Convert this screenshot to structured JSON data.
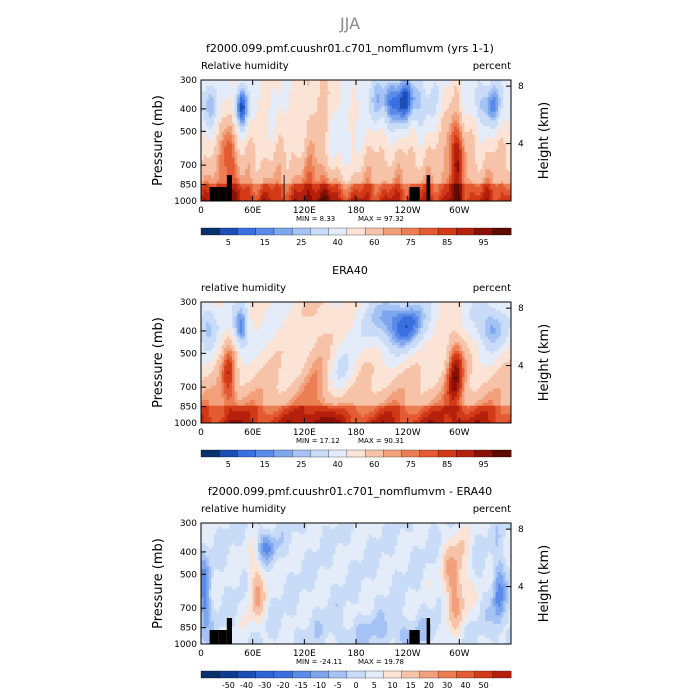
{
  "page_title": "JJA",
  "chart_data": [
    {
      "type": "heatmap",
      "title": "f2000.099.pmf.cuushr01.c701_nomflumvm (yrs 1-1)",
      "left_label": "Relative humidity",
      "right_label": "percent",
      "ylabel": "Pressure (mb)",
      "ylabel_right": "Height (km)",
      "x_ticks": [
        "0",
        "60E",
        "120E",
        "180",
        "120W",
        "60W"
      ],
      "x_tick_lon": [
        0,
        60,
        120,
        180,
        240,
        300
      ],
      "xlim": [
        0,
        360
      ],
      "y_ticks": [
        "300",
        "400",
        "500",
        "700",
        "850",
        "1000"
      ],
      "y_tick_p": [
        300,
        400,
        500,
        700,
        850,
        1000
      ],
      "ylim": [
        300,
        1000
      ],
      "y_scale": "log",
      "y2_ticks": [
        "8",
        "4"
      ],
      "y2_tick_km": [
        8,
        4
      ],
      "min_label": "MIN =    8.33",
      "max_label": "MAX =   97.32",
      "colorbar": {
        "labels": [
          "5",
          "15",
          "25",
          "40",
          "60",
          "75",
          "85",
          "95"
        ],
        "colors": [
          "#08306b",
          "#1c4fb4",
          "#3b6fe0",
          "#5a8ae8",
          "#7ea6ef",
          "#a4c2f4",
          "#c8dbf7",
          "#e3ecf8",
          "#fbe3d6",
          "#f6c3a8",
          "#f2a07c",
          "#ec7e54",
          "#e45a32",
          "#d23a17",
          "#b5200c",
          "#8a1005",
          "#5c0a02"
        ]
      },
      "anomaly": false,
      "terrain_boxes": [
        [
          10,
          20
        ],
        [
          20,
          30
        ],
        [
          30,
          36
        ],
        [
          96,
          97
        ],
        [
          242,
          254
        ],
        [
          262,
          266
        ]
      ]
    },
    {
      "type": "heatmap",
      "title": "ERA40",
      "left_label": "relative humidity",
      "right_label": "percent",
      "ylabel": "Pressure (mb)",
      "ylabel_right": "Height (km)",
      "x_ticks": [
        "0",
        "60E",
        "120E",
        "180",
        "120W",
        "60W"
      ],
      "x_tick_lon": [
        0,
        60,
        120,
        180,
        240,
        300
      ],
      "xlim": [
        0,
        360
      ],
      "y_ticks": [
        "300",
        "400",
        "500",
        "700",
        "850",
        "1000"
      ],
      "y_tick_p": [
        300,
        400,
        500,
        700,
        850,
        1000
      ],
      "ylim": [
        300,
        1000
      ],
      "y_scale": "log",
      "y2_ticks": [
        "8",
        "4"
      ],
      "y2_tick_km": [
        8,
        4
      ],
      "min_label": "MIN =   17.12",
      "max_label": "MAX =   90.31",
      "colorbar": {
        "labels": [
          "5",
          "15",
          "25",
          "40",
          "60",
          "75",
          "85",
          "95"
        ],
        "colors": [
          "#08306b",
          "#1c4fb4",
          "#3b6fe0",
          "#5a8ae8",
          "#7ea6ef",
          "#a4c2f4",
          "#c8dbf7",
          "#e3ecf8",
          "#fbe3d6",
          "#f6c3a8",
          "#f2a07c",
          "#ec7e54",
          "#e45a32",
          "#d23a17",
          "#b5200c",
          "#8a1005",
          "#5c0a02"
        ]
      },
      "anomaly": false,
      "terrain_boxes": []
    },
    {
      "type": "heatmap",
      "title": "f2000.099.pmf.cuushr01.c701_nomflumvm - ERA40",
      "left_label": "relative humidity",
      "right_label": "percent",
      "ylabel": "Pressure (mb)",
      "ylabel_right": "Height (km)",
      "x_ticks": [
        "0",
        "60E",
        "120E",
        "180",
        "120W",
        "60W"
      ],
      "x_tick_lon": [
        0,
        60,
        120,
        180,
        240,
        300
      ],
      "xlim": [
        0,
        360
      ],
      "y_ticks": [
        "300",
        "400",
        "500",
        "700",
        "850",
        "1000"
      ],
      "y_tick_p": [
        300,
        400,
        500,
        700,
        850,
        1000
      ],
      "ylim": [
        300,
        1000
      ],
      "y_scale": "log",
      "y2_ticks": [
        "8",
        "4"
      ],
      "y2_tick_km": [
        8,
        4
      ],
      "min_label": "MIN =  -24.11",
      "max_label": "MAX =   19.78",
      "colorbar": {
        "labels": [
          "-50",
          "-40",
          "-30",
          "-20",
          "-15",
          "-10",
          "-5",
          "0",
          "5",
          "10",
          "15",
          "20",
          "30",
          "40",
          "50"
        ],
        "colors": [
          "#08306b",
          "#103a8c",
          "#1c4fb4",
          "#2f63d6",
          "#3b6fe0",
          "#5a8ae8",
          "#7ea6ef",
          "#a4c2f4",
          "#c8dbf7",
          "#e3ecf8",
          "#fbe3d6",
          "#f6c3a8",
          "#f2a07c",
          "#ec7e54",
          "#e45a32",
          "#d23a17",
          "#b5200c"
        ]
      },
      "anomaly": true,
      "terrain_boxes": [
        [
          10,
          20
        ],
        [
          20,
          30
        ],
        [
          30,
          36
        ],
        [
          242,
          254
        ],
        [
          262,
          266
        ]
      ]
    }
  ]
}
